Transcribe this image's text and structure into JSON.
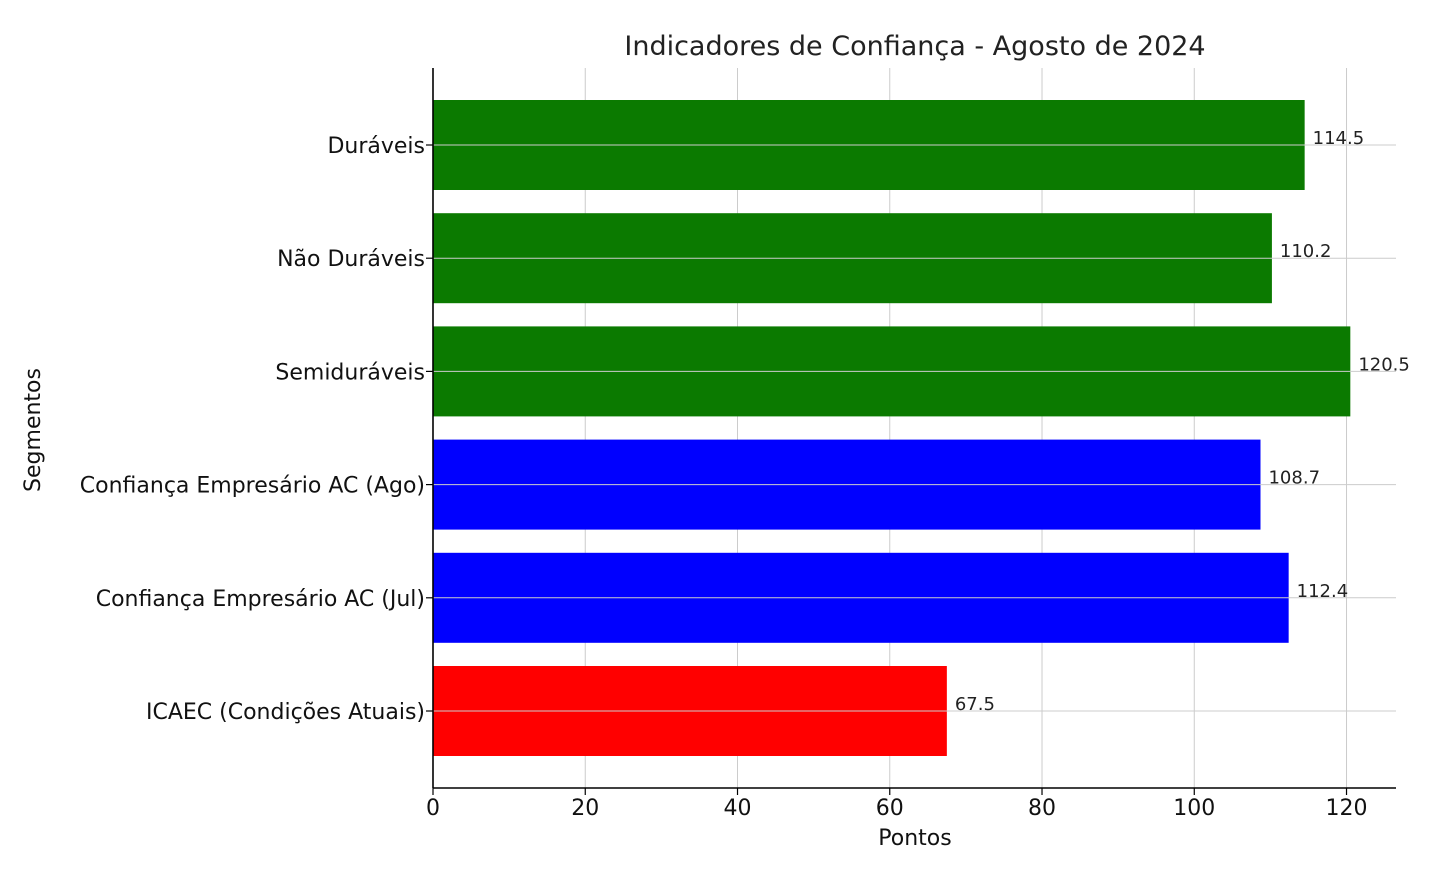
{
  "chart_data": {
    "type": "bar",
    "orientation": "horizontal",
    "title": "Indicadores de Confiança - Agosto de 2024",
    "xlabel": "Pontos",
    "ylabel": "Segmentos",
    "xlim": [
      0,
      126.5
    ],
    "xticks": [
      0,
      20,
      40,
      60,
      80,
      100,
      120
    ],
    "grid": true,
    "categories": [
      "Duráveis",
      "Não Duráveis",
      "Semiduráveis",
      "Confiança Empresário AC (Ago)",
      "Confiança Empresário AC (Jul)",
      "ICAEC (Condições Atuais)"
    ],
    "values": [
      114.5,
      110.2,
      120.5,
      108.7,
      112.4,
      67.5
    ],
    "value_labels": [
      "114.5",
      "110.2",
      "120.5",
      "108.7",
      "112.4",
      "67.5"
    ],
    "colors": [
      "#0b7a00",
      "#0b7a00",
      "#0b7a00",
      "#0000ff",
      "#0000ff",
      "#ff0000"
    ]
  }
}
